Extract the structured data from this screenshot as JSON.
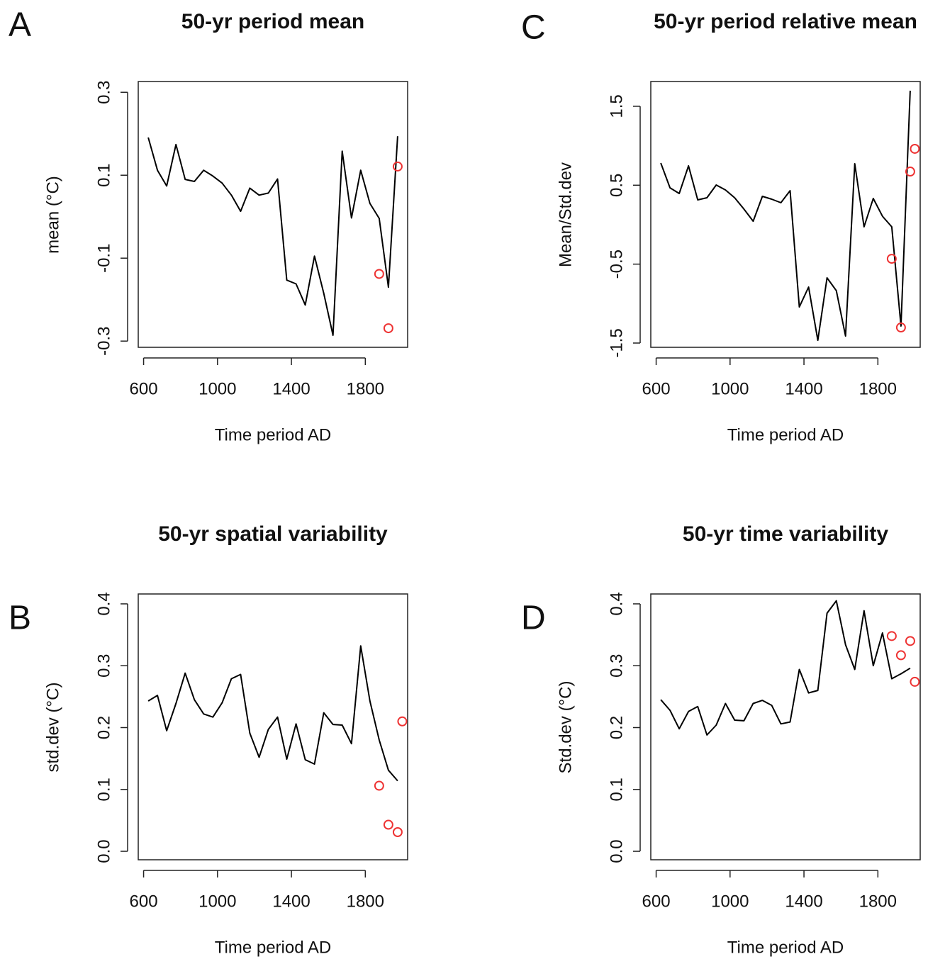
{
  "chart_data": [
    {
      "type": "line",
      "panel": "A",
      "title": "50-yr period mean",
      "xlabel": "Time period AD",
      "ylabel": "mean (°C)",
      "xlim": [
        571,
        2029
      ],
      "ylim": [
        -0.315,
        0.326
      ],
      "xticks": [
        600,
        1000,
        1400,
        1800
      ],
      "yticks": [
        -0.3,
        -0.1,
        0.1,
        0.3
      ],
      "series": [
        {
          "style": "line",
          "color": "#000000",
          "x": [
            625,
            675,
            725,
            775,
            825,
            875,
            925,
            975,
            1025,
            1075,
            1125,
            1175,
            1225,
            1275,
            1325,
            1375,
            1425,
            1475,
            1525,
            1575,
            1625,
            1675,
            1725,
            1775,
            1825,
            1875,
            1925,
            1975
          ],
          "values": [
            0.191,
            0.112,
            0.074,
            0.174,
            0.09,
            0.085,
            0.112,
            0.098,
            0.081,
            0.052,
            0.013,
            0.069,
            0.052,
            0.057,
            0.091,
            -0.153,
            -0.162,
            -0.213,
            -0.095,
            -0.185,
            -0.286,
            0.158,
            -0.003,
            0.112,
            0.032,
            -0.004,
            -0.17,
            0.194
          ]
        },
        {
          "style": "points",
          "color": "#ee3333",
          "x": [
            1875,
            1925,
            1975
          ],
          "values": [
            -0.138,
            -0.269,
            0.121
          ]
        }
      ]
    },
    {
      "type": "line",
      "panel": "B",
      "title": "50-yr spatial variability",
      "xlabel": "Time period AD",
      "ylabel": "std.dev (°C)",
      "xlim": [
        571,
        2029
      ],
      "ylim": [
        -0.0137,
        0.416
      ],
      "xticks": [
        600,
        1000,
        1400,
        1800
      ],
      "yticks": [
        {
          "value": 0,
          "label": "0.0"
        },
        0.1,
        0.2,
        0.3,
        0.4
      ],
      "series": [
        {
          "style": "line",
          "color": "#000000",
          "x": [
            625,
            675,
            725,
            775,
            825,
            875,
            925,
            975,
            1025,
            1075,
            1125,
            1175,
            1225,
            1275,
            1325,
            1375,
            1425,
            1475,
            1525,
            1575,
            1625,
            1675,
            1725,
            1775,
            1825,
            1875,
            1925,
            1975
          ],
          "values": [
            0.243,
            0.252,
            0.195,
            0.239,
            0.288,
            0.245,
            0.222,
            0.217,
            0.24,
            0.279,
            0.286,
            0.191,
            0.152,
            0.197,
            0.217,
            0.149,
            0.206,
            0.148,
            0.141,
            0.224,
            0.205,
            0.204,
            0.174,
            0.332,
            0.243,
            0.18,
            0.131,
            0.114
          ]
        },
        {
          "style": "points",
          "color": "#ee3333",
          "x": [
            1875,
            1925,
            1975,
            2000
          ],
          "values": [
            0.106,
            0.043,
            0.031,
            0.21
          ]
        }
      ]
    },
    {
      "type": "line",
      "panel": "C",
      "title": "50-yr period relative mean",
      "xlabel": "Time period AD",
      "ylabel": "Mean/Std.dev",
      "xlim": [
        571,
        2029
      ],
      "ylim": [
        -1.554,
        1.814
      ],
      "xticks": [
        600,
        1000,
        1400,
        1800
      ],
      "yticks": [
        -1.5,
        -0.5,
        0.5,
        1.5
      ],
      "series": [
        {
          "style": "line",
          "color": "#000000",
          "x": [
            625,
            675,
            725,
            775,
            825,
            875,
            925,
            975,
            1025,
            1075,
            1125,
            1175,
            1225,
            1275,
            1325,
            1375,
            1425,
            1475,
            1525,
            1575,
            1625,
            1675,
            1725,
            1775,
            1825,
            1875,
            1925,
            1975
          ],
          "values": [
            0.781,
            0.467,
            0.395,
            0.745,
            0.314,
            0.341,
            0.503,
            0.44,
            0.341,
            0.197,
            0.044,
            0.359,
            0.323,
            0.278,
            0.431,
            -1.043,
            -0.791,
            -1.465,
            -0.674,
            -0.836,
            -1.411,
            0.772,
            -0.027,
            0.332,
            0.107,
            -0.027,
            -1.285,
            1.698
          ]
        },
        {
          "style": "points",
          "color": "#ee3333",
          "x": [
            1875,
            1925,
            1975,
            2000
          ],
          "values": [
            -0.432,
            -1.303,
            0.673,
            0.961
          ]
        }
      ]
    },
    {
      "type": "line",
      "panel": "D",
      "title": "50-yr time variability",
      "xlabel": "Time period AD",
      "ylabel": "Std.dev (°C)",
      "xlim": [
        571,
        2029
      ],
      "ylim": [
        -0.0137,
        0.416
      ],
      "xticks": [
        600,
        1000,
        1400,
        1800
      ],
      "yticks": [
        {
          "value": 0,
          "label": "0.0"
        },
        0.1,
        0.2,
        0.3,
        0.4
      ],
      "series": [
        {
          "style": "line",
          "color": "#000000",
          "x": [
            625,
            675,
            725,
            775,
            825,
            875,
            925,
            975,
            1025,
            1075,
            1125,
            1175,
            1225,
            1275,
            1325,
            1375,
            1425,
            1475,
            1525,
            1575,
            1625,
            1675,
            1725,
            1775,
            1825,
            1875,
            1925,
            1975
          ],
          "values": [
            0.245,
            0.228,
            0.198,
            0.226,
            0.234,
            0.188,
            0.204,
            0.239,
            0.212,
            0.211,
            0.239,
            0.244,
            0.236,
            0.206,
            0.209,
            0.294,
            0.256,
            0.26,
            0.385,
            0.405,
            0.334,
            0.294,
            0.389,
            0.3,
            0.353,
            0.279,
            0.287,
            0.296
          ]
        },
        {
          "style": "points",
          "color": "#ee3333",
          "x": [
            1875,
            1925,
            1975,
            2000
          ],
          "values": [
            0.348,
            0.317,
            0.34,
            0.274
          ]
        }
      ]
    }
  ]
}
